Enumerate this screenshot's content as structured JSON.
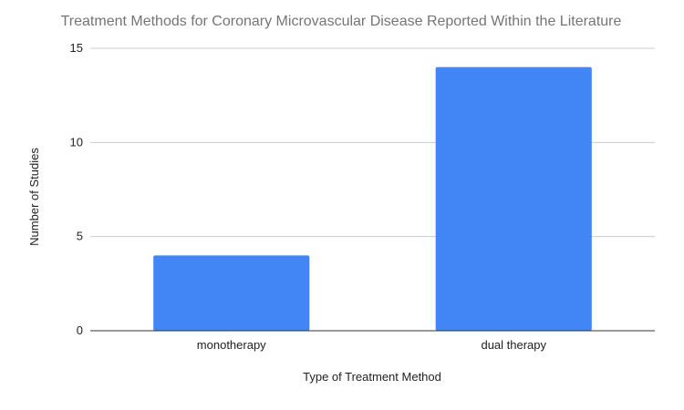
{
  "chart_data": {
    "type": "bar",
    "title": "Treatment Methods for Coronary Microvascular Disease Reported Within the Literature",
    "xlabel": "Type of Treatment Method",
    "ylabel": "Number of Studies",
    "categories": [
      "monotherapy",
      "dual therapy"
    ],
    "values": [
      4,
      14
    ],
    "ylim": [
      0,
      15
    ],
    "yticks": [
      0,
      5,
      10,
      15
    ],
    "grid": true,
    "legend": "none",
    "bar_color": "#4285F4"
  }
}
